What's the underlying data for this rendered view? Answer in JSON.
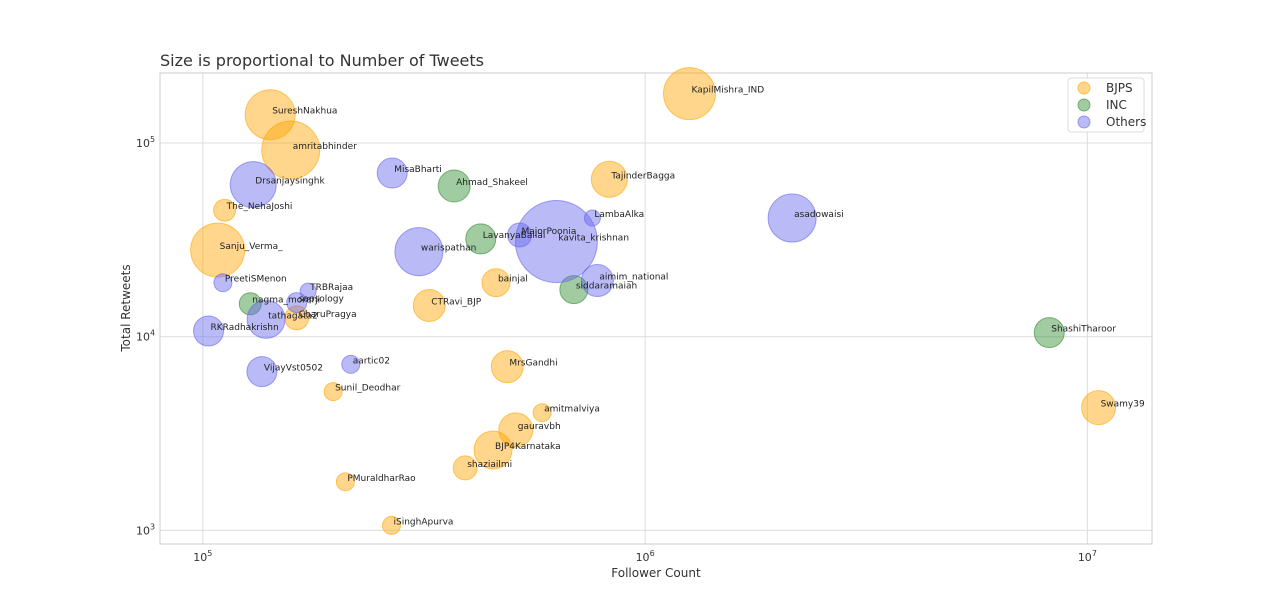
{
  "chart_data": {
    "type": "scatter",
    "title": "Size is proportional to Number of Tweets",
    "xlabel": "Follower Count",
    "ylabel": "Total Retweets",
    "xscale": "log",
    "yscale": "log",
    "xlim": [
      80000,
      14000000
    ],
    "ylim": [
      850,
      230000
    ],
    "xticks": [
      {
        "value": 100000,
        "base": "10",
        "exp": "5"
      },
      {
        "value": 1000000,
        "base": "10",
        "exp": "6"
      },
      {
        "value": 10000000,
        "base": "10",
        "exp": "7"
      }
    ],
    "yticks": [
      {
        "value": 1000,
        "base": "10",
        "exp": "3"
      },
      {
        "value": 10000,
        "base": "10",
        "exp": "4"
      },
      {
        "value": 100000,
        "base": "10",
        "exp": "5"
      }
    ],
    "grid": true,
    "legend_position": "top-right",
    "series": [
      {
        "name": "BJPS",
        "color": "#FFA500",
        "points": [
          {
            "label": "KapilMishra_IND",
            "x": 1260000,
            "y": 180000,
            "r": 26
          },
          {
            "label": "SureshNakhua",
            "x": 142000,
            "y": 140000,
            "r": 25
          },
          {
            "label": "amritabhinder",
            "x": 158000,
            "y": 92000,
            "r": 29
          },
          {
            "label": "TajinderBagga",
            "x": 830000,
            "y": 65000,
            "r": 18
          },
          {
            "label": "The_NehaJoshi",
            "x": 112000,
            "y": 45000,
            "r": 11
          },
          {
            "label": "Sanju_Verma_",
            "x": 108000,
            "y": 28000,
            "r": 27
          },
          {
            "label": "bainjal",
            "x": 460000,
            "y": 19000,
            "r": 14
          },
          {
            "label": "CTRavi_BJP",
            "x": 325000,
            "y": 14500,
            "r": 16
          },
          {
            "label": "CharuPragya",
            "x": 163000,
            "y": 12500,
            "r": 12
          },
          {
            "label": "MrsGandhi",
            "x": 488000,
            "y": 7000,
            "r": 16
          },
          {
            "label": "Sunil_Deodhar",
            "x": 197000,
            "y": 5200,
            "r": 9
          },
          {
            "label": "amitmalviya",
            "x": 585000,
            "y": 4050,
            "r": 9
          },
          {
            "label": "gauravbh",
            "x": 510000,
            "y": 3300,
            "r": 17
          },
          {
            "label": "BJP4Karnataka",
            "x": 453000,
            "y": 2600,
            "r": 19
          },
          {
            "label": "shaziailmi",
            "x": 392000,
            "y": 2100,
            "r": 12
          },
          {
            "label": "PMuraldharRao",
            "x": 210000,
            "y": 1780,
            "r": 9
          },
          {
            "label": "iSinghApurva",
            "x": 267000,
            "y": 1060,
            "r": 9
          },
          {
            "label": "Swamy39",
            "x": 10600000,
            "y": 4300,
            "r": 17
          }
        ]
      },
      {
        "name": "INC",
        "color": "#2E8B2E",
        "points": [
          {
            "label": "Ahmad_Shakeel",
            "x": 370000,
            "y": 60000,
            "r": 16
          },
          {
            "label": "LavanyaBallal",
            "x": 425000,
            "y": 32000,
            "r": 15
          },
          {
            "label": "siddaramaiah",
            "x": 690000,
            "y": 17500,
            "r": 14
          },
          {
            "label": "nagma_morarji",
            "x": 128000,
            "y": 14800,
            "r": 11
          },
          {
            "label": "ShashiTharoor",
            "x": 8200000,
            "y": 10500,
            "r": 15
          }
        ]
      },
      {
        "name": "Others",
        "color": "#6666EE",
        "points": [
          {
            "label": "Drsanjaysinghk",
            "x": 130000,
            "y": 61000,
            "r": 23
          },
          {
            "label": "MisaBharti",
            "x": 268000,
            "y": 70000,
            "r": 15
          },
          {
            "label": "LambaAlka",
            "x": 760000,
            "y": 41000,
            "r": 8
          },
          {
            "label": "asadowaisi",
            "x": 2150000,
            "y": 41000,
            "r": 24
          },
          {
            "label": "MajorPoonia",
            "x": 520000,
            "y": 33500,
            "r": 12
          },
          {
            "label": "kavita_krishnan",
            "x": 630000,
            "y": 31000,
            "r": 41
          },
          {
            "label": "warispathan",
            "x": 308000,
            "y": 27500,
            "r": 24
          },
          {
            "label": "aimim_national",
            "x": 780000,
            "y": 19500,
            "r": 16
          },
          {
            "label": "PreetiSMenon",
            "x": 111000,
            "y": 19000,
            "r": 9
          },
          {
            "label": "TRBRajaa",
            "x": 173000,
            "y": 17200,
            "r": 8
          },
          {
            "label": "sapsology",
            "x": 163000,
            "y": 15000,
            "r": 10
          },
          {
            "label": "tathagata2",
            "x": 139000,
            "y": 12300,
            "r": 19
          },
          {
            "label": "RKRadhakrishn",
            "x": 103000,
            "y": 10700,
            "r": 15
          },
          {
            "label": "aartic02",
            "x": 216000,
            "y": 7200,
            "r": 9
          },
          {
            "label": "VijayVst0502",
            "x": 136000,
            "y": 6600,
            "r": 15
          }
        ]
      }
    ]
  }
}
